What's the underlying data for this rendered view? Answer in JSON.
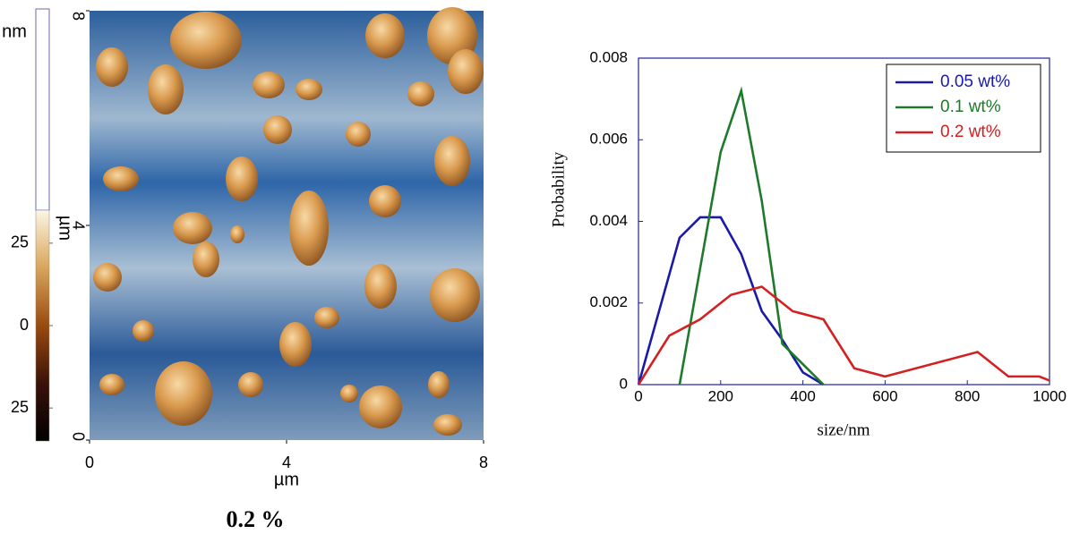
{
  "chart_data": [
    {
      "type": "image",
      "xlabel": "µm",
      "ylabel": "µm",
      "xlim": [
        0,
        8
      ],
      "xticks": [
        0,
        4,
        8
      ],
      "ylim": [
        0,
        8
      ],
      "yticks": [
        0,
        4,
        8
      ],
      "colorbar_label": "nm",
      "clim": [
        -35,
        35
      ],
      "colorbar_ticks": [
        25,
        0,
        {
          "value": -25,
          "label": "25"
        }
      ],
      "caption": "0.2 %"
    },
    {
      "type": "line",
      "xlabel": "size/nm",
      "ylabel": "Probability",
      "xlim": [
        0,
        1000
      ],
      "xticks": [
        0,
        200,
        400,
        600,
        800,
        1000
      ],
      "ylim": [
        0,
        0.008
      ],
      "yticks": [
        0,
        0.002,
        0.004,
        0.006,
        0.008
      ],
      "legend": "upper right",
      "series": [
        {
          "name": "0.05 wt%",
          "color": "#1a1aa8",
          "x": [
            0,
            100,
            150,
            200,
            250,
            300,
            350,
            400,
            450
          ],
          "values": [
            0,
            0.0036,
            0.0041,
            0.0041,
            0.0032,
            0.0018,
            0.0011,
            0.0003,
            0
          ]
        },
        {
          "name": "0.1 wt%",
          "color": "#1e7a2a",
          "x": [
            100,
            200,
            250,
            300,
            350,
            450
          ],
          "values": [
            0,
            0.0057,
            0.0072,
            0.0045,
            0.001,
            0
          ]
        },
        {
          "name": "0.2 wt%",
          "color": "#d42020",
          "x": [
            0,
            75,
            150,
            225,
            300,
            375,
            450,
            525,
            600,
            825,
            900,
            975,
            1000
          ],
          "values": [
            0,
            0.0012,
            0.0016,
            0.0022,
            0.0024,
            0.0018,
            0.0016,
            0.0004,
            0.0002,
            0.0008,
            0.0002,
            0.0002,
            0.0001
          ]
        }
      ]
    }
  ]
}
